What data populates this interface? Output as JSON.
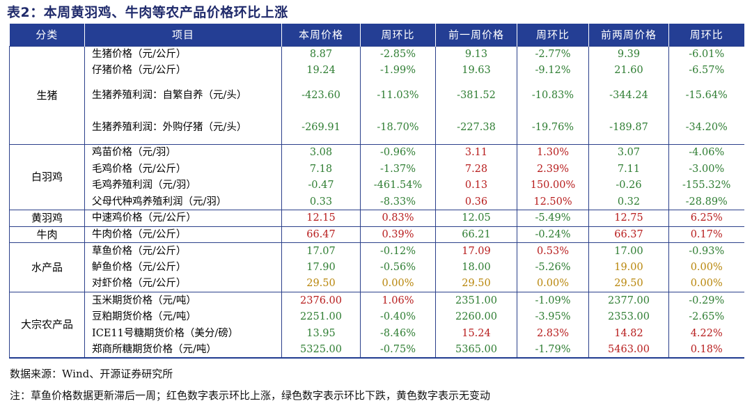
{
  "title": "表2：本周黄羽鸡、牛肉等农产品价格环比上涨",
  "headers": [
    "分类",
    "项目",
    "本周价格",
    "周环比",
    "前一周价格",
    "周环比",
    "前两周价格",
    "周环比"
  ],
  "colors": {
    "up": "#b71c1c",
    "down": "#2e7d32",
    "flat": "#b8860b",
    "header_bg": "#243e94"
  },
  "groups": [
    {
      "category": "生猪",
      "rows": [
        {
          "item": "生猪价格（元/公斤）",
          "tall": false,
          "cells": [
            [
              "8.87",
              "g"
            ],
            [
              "-2.85%",
              "g"
            ],
            [
              "9.13",
              "g"
            ],
            [
              "-2.77%",
              "g"
            ],
            [
              "9.39",
              "g"
            ],
            [
              "-6.01%",
              "g"
            ]
          ]
        },
        {
          "item": "仔猪价格（元/公斤）",
          "tall": false,
          "cells": [
            [
              "19.24",
              "g"
            ],
            [
              "-1.99%",
              "g"
            ],
            [
              "19.63",
              "g"
            ],
            [
              "-9.12%",
              "g"
            ],
            [
              "21.60",
              "g"
            ],
            [
              "-6.57%",
              "g"
            ]
          ]
        },
        {
          "item": "生猪养殖利润：自繁自养（元/头）",
          "tall": true,
          "cells": [
            [
              "-423.60",
              "g"
            ],
            [
              "-11.03%",
              "g"
            ],
            [
              "-381.52",
              "g"
            ],
            [
              "-10.83%",
              "g"
            ],
            [
              "-344.24",
              "g"
            ],
            [
              "-15.64%",
              "g"
            ]
          ]
        },
        {
          "item": "生猪养殖利润：外购仔猪（元/头）",
          "tall": true,
          "cells": [
            [
              "-269.91",
              "g"
            ],
            [
              "-18.70%",
              "g"
            ],
            [
              "-227.38",
              "g"
            ],
            [
              "-19.76%",
              "g"
            ],
            [
              "-189.87",
              "g"
            ],
            [
              "-34.20%",
              "g"
            ]
          ]
        }
      ]
    },
    {
      "category": "白羽鸡",
      "rows": [
        {
          "item": "鸡苗价格（元/羽）",
          "tall": false,
          "cells": [
            [
              "3.08",
              "g"
            ],
            [
              "-0.96%",
              "g"
            ],
            [
              "3.11",
              "r"
            ],
            [
              "1.30%",
              "r"
            ],
            [
              "3.07",
              "g"
            ],
            [
              "-4.06%",
              "g"
            ]
          ]
        },
        {
          "item": "毛鸡价格（元/公斤）",
          "tall": false,
          "cells": [
            [
              "7.18",
              "g"
            ],
            [
              "-1.37%",
              "g"
            ],
            [
              "7.28",
              "r"
            ],
            [
              "2.39%",
              "r"
            ],
            [
              "7.11",
              "g"
            ],
            [
              "-3.00%",
              "g"
            ]
          ]
        },
        {
          "item": "毛鸡养殖利润（元/羽）",
          "tall": false,
          "cells": [
            [
              "-0.47",
              "g"
            ],
            [
              "-461.54%",
              "g"
            ],
            [
              "0.13",
              "r"
            ],
            [
              "150.00%",
              "r"
            ],
            [
              "-0.26",
              "g"
            ],
            [
              "-155.32%",
              "g"
            ]
          ]
        },
        {
          "item": "父母代种鸡养殖利润（元/羽）",
          "tall": false,
          "cells": [
            [
              "0.33",
              "g"
            ],
            [
              "-8.33%",
              "g"
            ],
            [
              "0.36",
              "r"
            ],
            [
              "12.50%",
              "r"
            ],
            [
              "0.32",
              "g"
            ],
            [
              "-28.89%",
              "g"
            ]
          ]
        }
      ]
    },
    {
      "category": "黄羽鸡",
      "rows": [
        {
          "item": "中速鸡价格（元/公斤）",
          "tall": false,
          "cells": [
            [
              "12.15",
              "r"
            ],
            [
              "0.83%",
              "r"
            ],
            [
              "12.05",
              "g"
            ],
            [
              "-5.49%",
              "g"
            ],
            [
              "12.75",
              "r"
            ],
            [
              "6.25%",
              "r"
            ]
          ]
        }
      ]
    },
    {
      "category": "牛肉",
      "rows": [
        {
          "item": "牛肉价格（元/公斤）",
          "tall": false,
          "cells": [
            [
              "66.47",
              "r"
            ],
            [
              "0.39%",
              "r"
            ],
            [
              "66.21",
              "g"
            ],
            [
              "-0.24%",
              "g"
            ],
            [
              "66.37",
              "r"
            ],
            [
              "0.17%",
              "r"
            ]
          ]
        }
      ]
    },
    {
      "category": "水产品",
      "rows": [
        {
          "item": "草鱼价格（元/公斤）",
          "tall": false,
          "cells": [
            [
              "17.07",
              "g"
            ],
            [
              "-0.12%",
              "g"
            ],
            [
              "17.09",
              "r"
            ],
            [
              "0.53%",
              "r"
            ],
            [
              "17.00",
              "g"
            ],
            [
              "-0.93%",
              "g"
            ]
          ]
        },
        {
          "item": "鲈鱼价格（元/公斤）",
          "tall": false,
          "cells": [
            [
              "17.90",
              "g"
            ],
            [
              "-0.56%",
              "g"
            ],
            [
              "18.00",
              "g"
            ],
            [
              "-5.26%",
              "g"
            ],
            [
              "19.00",
              "y"
            ],
            [
              "0.00%",
              "y"
            ]
          ]
        },
        {
          "item": "对虾价格（元/公斤）",
          "tall": false,
          "cells": [
            [
              "29.50",
              "y"
            ],
            [
              "0.00%",
              "y"
            ],
            [
              "29.50",
              "y"
            ],
            [
              "0.00%",
              "y"
            ],
            [
              "29.50",
              "y"
            ],
            [
              "0.00%",
              "y"
            ]
          ]
        }
      ]
    },
    {
      "category": "大宗农产品",
      "rows": [
        {
          "item": "玉米期货价格（元/吨）",
          "tall": false,
          "cells": [
            [
              "2376.00",
              "r"
            ],
            [
              "1.06%",
              "r"
            ],
            [
              "2351.00",
              "g"
            ],
            [
              "-1.09%",
              "g"
            ],
            [
              "2377.00",
              "g"
            ],
            [
              "-0.29%",
              "g"
            ]
          ]
        },
        {
          "item": "豆粕期货价格（元/吨）",
          "tall": false,
          "cells": [
            [
              "2251.00",
              "g"
            ],
            [
              "-0.40%",
              "g"
            ],
            [
              "2260.00",
              "g"
            ],
            [
              "-3.95%",
              "g"
            ],
            [
              "2353.00",
              "g"
            ],
            [
              "-2.65%",
              "g"
            ]
          ]
        },
        {
          "item": "ICE11号糖期货价格（美分/磅）",
          "tall": false,
          "cells": [
            [
              "13.95",
              "g"
            ],
            [
              "-8.46%",
              "g"
            ],
            [
              "15.24",
              "r"
            ],
            [
              "2.83%",
              "r"
            ],
            [
              "14.82",
              "r"
            ],
            [
              "4.22%",
              "r"
            ]
          ]
        },
        {
          "item": "郑商所糖期货价格（元/吨）",
          "tall": false,
          "cells": [
            [
              "5325.00",
              "g"
            ],
            [
              "-0.75%",
              "g"
            ],
            [
              "5365.00",
              "g"
            ],
            [
              "-1.79%",
              "g"
            ],
            [
              "5463.00",
              "r"
            ],
            [
              "0.18%",
              "r"
            ]
          ]
        }
      ]
    }
  ],
  "source_note": "数据来源：Wind、开源证券研究所",
  "note": "注：草鱼价格数据更新滞后一周；红色数字表示环比上涨，绿色数字表示环比下跌，黄色数字表示无变动"
}
